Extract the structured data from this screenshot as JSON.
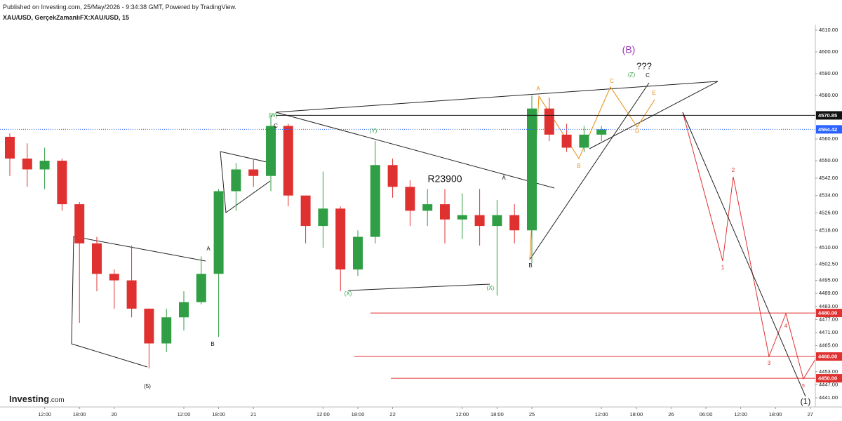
{
  "chart_data": {
    "type": "candlestick",
    "title": "Published on Investing.com, 25/May/2026 - 9:34:38 GMT, Powered by TradingView.",
    "subtitle": "XAU/USD, GerçekZamanlıFX:XAU/USD, 15",
    "categories": [
      null,
      null,
      "12:00",
      null,
      "18:00",
      null,
      "20",
      null,
      null,
      null,
      "12:00",
      null,
      "18:00",
      null,
      "21",
      null,
      null,
      null,
      "12:00",
      null,
      "18:00",
      null,
      "22",
      null,
      null,
      null,
      "12:00",
      null,
      "18:00",
      null,
      "25",
      null,
      null,
      null,
      "12:00",
      null,
      "18:00",
      null,
      "26",
      null,
      "06:00",
      null,
      "12:00",
      null,
      "18:00",
      null,
      "27"
    ],
    "series": {
      "up_color": "#2f9e44",
      "down_color": "#e03131",
      "open": [
        4561,
        4551,
        4546,
        4550,
        4530,
        4512,
        4498,
        4495,
        4482,
        4466,
        4478,
        4485,
        4498,
        4536,
        4546,
        4543,
        4566,
        4534,
        4520,
        4528,
        4500,
        4515,
        4548,
        4538,
        4527,
        4530,
        4523,
        4525,
        4520,
        4525,
        4518,
        4574,
        4562,
        4556,
        4562,
        null,
        null,
        null,
        null,
        null,
        null,
        null,
        null,
        null,
        null,
        null,
        null
      ],
      "high": [
        4562.6,
        4558,
        4556,
        4551,
        4531,
        4515,
        4500,
        4511,
        4482,
        4482,
        4490,
        4506,
        4537,
        4549,
        4551,
        4571,
        4567,
        4534,
        4545,
        4529,
        4518,
        4559,
        4551,
        4541,
        4537,
        4537,
        4535,
        4537,
        4532,
        4530,
        4580,
        4579,
        4567,
        4566,
        4566,
        null,
        null,
        null,
        null,
        null,
        null,
        null,
        null,
        null,
        null,
        null,
        null
      ],
      "low": [
        4543,
        4538,
        4537,
        4527,
        4475.5,
        4490,
        4482,
        4478,
        4454.5,
        4462,
        4472,
        4484,
        4469,
        4527,
        4538,
        4536,
        4529,
        4512,
        4510,
        4490,
        4497,
        4512,
        4533,
        4520,
        4520,
        4512,
        4514,
        4511,
        4488,
        4512,
        4503,
        4559,
        4554,
        4554,
        4559,
        null,
        null,
        null,
        null,
        null,
        null,
        null,
        null,
        null,
        null,
        null,
        null
      ],
      "close": [
        4551,
        4546,
        4550,
        4530,
        4512,
        4498,
        4495,
        4482,
        4466,
        4478,
        4485,
        4498,
        4536,
        4546,
        4543,
        4566,
        4534,
        4520,
        4528,
        4500,
        4515,
        4548,
        4538,
        4527,
        4530,
        4523,
        4525,
        4520,
        4525,
        4518,
        4574,
        4562,
        4556,
        4562,
        4564.42,
        null,
        null,
        null,
        null,
        null,
        null,
        null,
        null,
        null,
        null,
        null,
        null
      ]
    },
    "ylim": [
      4436.8,
      4612.6
    ],
    "yticks": [
      {
        "value": 4610,
        "label": "4610.00"
      },
      {
        "value": 4600,
        "label": "4600.00"
      },
      {
        "value": 4590,
        "label": "4590.00"
      },
      {
        "value": 4580,
        "label": "4580.00"
      },
      {
        "value": 4560,
        "label": "4560.00"
      },
      {
        "value": 4550,
        "label": "4550.00"
      },
      {
        "value": 4542,
        "label": "4542.00"
      },
      {
        "value": 4534,
        "label": "4534.00"
      },
      {
        "value": 4526,
        "label": "4526.00"
      },
      {
        "value": 4518,
        "label": "4518.00"
      },
      {
        "value": 4510,
        "label": "4510.00"
      },
      {
        "value": 4502.5,
        "label": "4502.50"
      },
      {
        "value": 4495,
        "label": "4495.00"
      },
      {
        "value": 4489,
        "label": "4489.00"
      },
      {
        "value": 4483,
        "label": "4483.00"
      },
      {
        "value": 4477,
        "label": "4477.00"
      },
      {
        "value": 4471,
        "label": "4471.00"
      },
      {
        "value": 4465,
        "label": "4465.00"
      },
      {
        "value": 4459,
        "label": "4459.00"
      },
      {
        "value": 4453,
        "label": "4453.00"
      },
      {
        "value": 4447,
        "label": "4447.00"
      },
      {
        "value": 4441,
        "label": "4441.00"
      }
    ],
    "grid": false,
    "price_lines": [
      {
        "value": 4570.85,
        "label": "4570.85",
        "color": "#111111",
        "style": "solid"
      },
      {
        "value": 4564.42,
        "label": "4564.42",
        "color": "#2962ff",
        "style": "dotted"
      },
      {
        "value": 4480,
        "label": "4480.00",
        "color": "#e03131",
        "style": "solid"
      },
      {
        "value": 4460,
        "label": "4460.00",
        "color": "#e03131",
        "style": "solid"
      },
      {
        "value": 4450,
        "label": "4450.00",
        "color": "#e03131",
        "style": "solid"
      }
    ],
    "annotations": [
      {
        "text": "(W)",
        "color": "#2f9e44"
      },
      {
        "text": "C",
        "color": "#111111"
      },
      {
        "text": "(Y)",
        "color": "#2f9e44"
      },
      {
        "text": "(X)",
        "color": "#2f9e44"
      },
      {
        "text": "(X)",
        "color": "#2f9e44"
      },
      {
        "text": "A",
        "color": "#111111"
      },
      {
        "text": "B",
        "color": "#111111"
      },
      {
        "text": "A",
        "color": "#111111"
      },
      {
        "text": "B",
        "color": "#111111"
      },
      {
        "text": "(5)",
        "color": "#111111"
      },
      {
        "text": "R23900",
        "color": "#111111"
      },
      {
        "text": "A",
        "color": "#e8890c"
      },
      {
        "text": "B",
        "color": "#e8890c"
      },
      {
        "text": "C",
        "color": "#e8890c"
      },
      {
        "text": "D",
        "color": "#e8890c"
      },
      {
        "text": "E",
        "color": "#e8890c"
      },
      {
        "text": "(Z)",
        "color": "#2f9e44"
      },
      {
        "text": "C",
        "color": "#111111"
      },
      {
        "text": "???",
        "color": "#111111"
      },
      {
        "text": "(B)",
        "color": "#9c36b5"
      },
      {
        "text": "1",
        "color": "#e03131"
      },
      {
        "text": "2",
        "color": "#e03131"
      },
      {
        "text": "3",
        "color": "#e03131"
      },
      {
        "text": "4",
        "color": "#e03131"
      },
      {
        "text": "5",
        "color": "#e03131"
      },
      {
        "text": "(1)",
        "color": "#111111"
      }
    ]
  },
  "branding": {
    "name": "Investing",
    "suffix": ".com"
  }
}
